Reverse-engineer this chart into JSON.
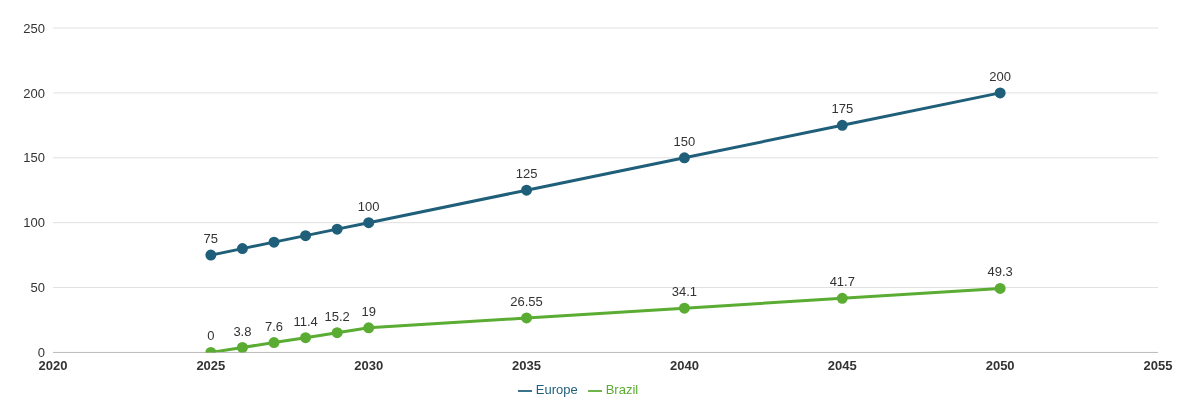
{
  "chart_data": {
    "type": "line",
    "x": [
      2025,
      2026,
      2027,
      2028,
      2029,
      2030,
      2035,
      2040,
      2045,
      2050
    ],
    "series": [
      {
        "name": "Europe",
        "color": "#1f5f7a",
        "values": [
          75,
          80,
          85,
          90,
          95,
          100,
          125,
          150,
          175,
          200
        ],
        "value_labels": [
          "75",
          null,
          null,
          null,
          null,
          "100",
          "125",
          "150",
          "175",
          "200"
        ]
      },
      {
        "name": "Brazil",
        "color": "#5aac32",
        "values": [
          0,
          3.8,
          7.6,
          11.4,
          15.2,
          19,
          26.55,
          34.1,
          41.7,
          49.3
        ],
        "value_labels": [
          "0",
          "3.8",
          "7.6",
          "11.4",
          "15.2",
          "19",
          "26.55",
          "34.1",
          "41.7",
          "49.3"
        ]
      }
    ],
    "xlim": [
      2020,
      2055
    ],
    "xticks": [
      2020,
      2025,
      2030,
      2035,
      2040,
      2045,
      2050,
      2055
    ],
    "ylim": [
      0,
      250
    ],
    "yticks": [
      0,
      50,
      100,
      150,
      200,
      250
    ],
    "grid": "y",
    "legend": "bottom",
    "marker": "circle",
    "line_style": "solid"
  }
}
